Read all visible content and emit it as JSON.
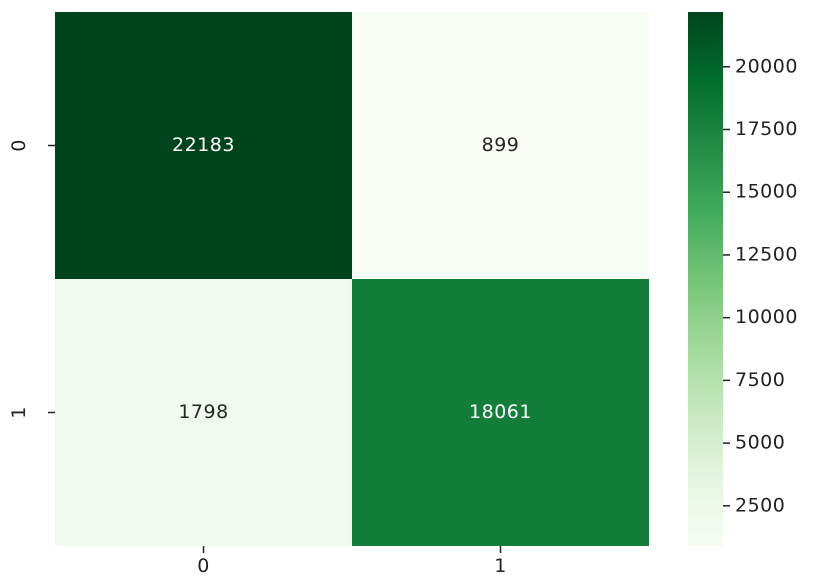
{
  "chart_data": {
    "type": "heatmap",
    "title": "",
    "xlabel": "",
    "ylabel": "",
    "x_categories": [
      "0",
      "1"
    ],
    "y_categories": [
      "0",
      "1"
    ],
    "values": [
      [
        22183,
        899
      ],
      [
        1798,
        18061
      ]
    ],
    "value_labels": [
      [
        "22183",
        "899"
      ],
      [
        "1798",
        "18061"
      ]
    ],
    "colorbar": {
      "min": 899,
      "max": 22183,
      "ticks": [
        2500,
        5000,
        7500,
        10000,
        12500,
        15000,
        17500,
        20000
      ],
      "tick_labels": [
        "2500",
        "5000",
        "7500",
        "10000",
        "12500",
        "15000",
        "17500",
        "20000"
      ],
      "colormap": "Greens",
      "placement": "right"
    },
    "colors": {
      "low": "#f7fcf5",
      "high": "#00441b",
      "annotation_dark_bg": "#ffffff",
      "annotation_light_bg": "#262626"
    }
  }
}
